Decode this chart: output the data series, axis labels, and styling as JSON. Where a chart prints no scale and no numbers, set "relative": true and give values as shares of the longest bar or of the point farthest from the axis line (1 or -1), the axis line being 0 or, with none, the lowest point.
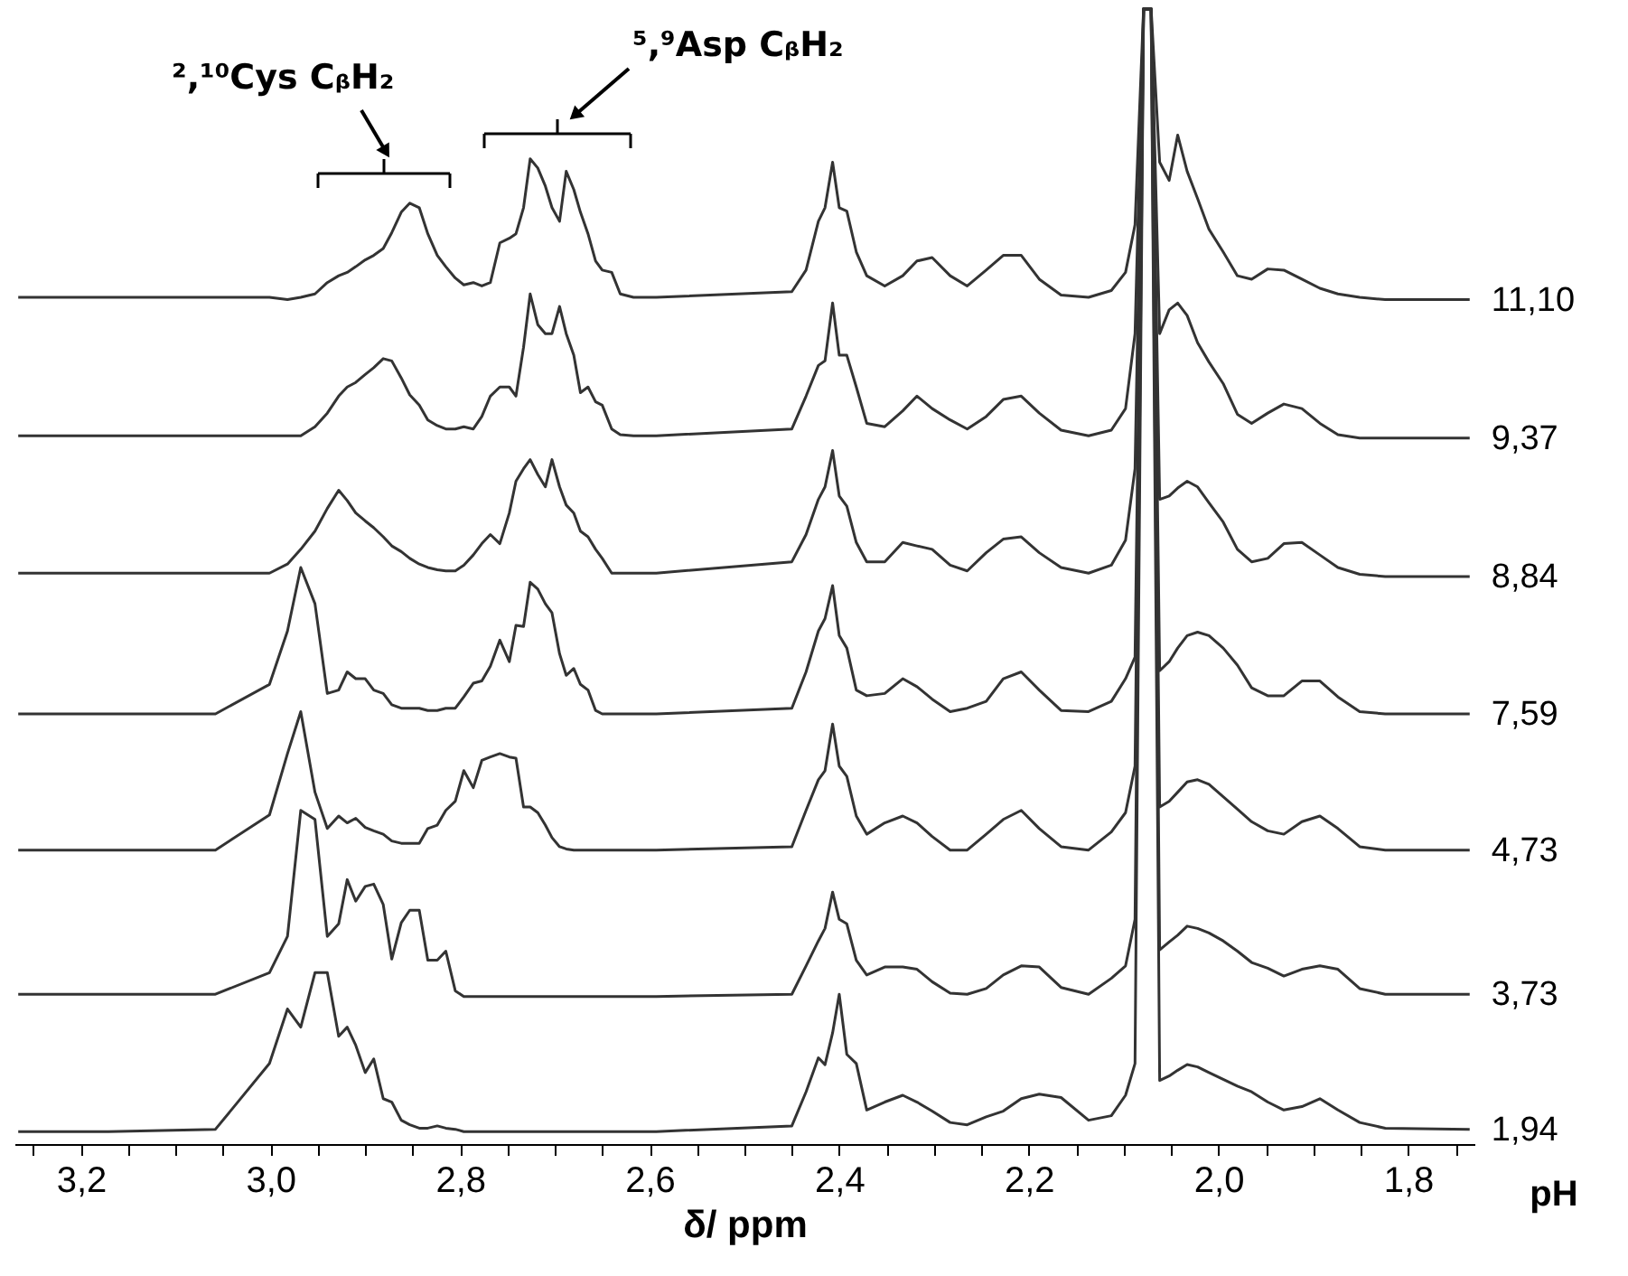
{
  "chart_data": {
    "type": "line",
    "relative": true,
    "xlabel": "δ/ ppm",
    "legend_title": "pH",
    "legend": false,
    "line_style": "solid",
    "xlim": [
      3.27,
      1.73
    ],
    "xticks": [
      {
        "value": 3.25,
        "label": null
      },
      {
        "value": 3.2,
        "label": "3,2"
      },
      {
        "value": 3.15,
        "label": null
      },
      {
        "value": 3.1,
        "label": null
      },
      {
        "value": 3.05,
        "label": null
      },
      {
        "value": 3.0,
        "label": "3,0"
      },
      {
        "value": 2.95,
        "label": null
      },
      {
        "value": 2.9,
        "label": null
      },
      {
        "value": 2.85,
        "label": null
      },
      {
        "value": 2.8,
        "label": "2,8"
      },
      {
        "value": 2.75,
        "label": null
      },
      {
        "value": 2.7,
        "label": null
      },
      {
        "value": 2.65,
        "label": null
      },
      {
        "value": 2.6,
        "label": "2,6"
      },
      {
        "value": 2.55,
        "label": null
      },
      {
        "value": 2.5,
        "label": null
      },
      {
        "value": 2.45,
        "label": null
      },
      {
        "value": 2.4,
        "label": "2,4"
      },
      {
        "value": 2.35,
        "label": null
      },
      {
        "value": 2.3,
        "label": null
      },
      {
        "value": 2.25,
        "label": null
      },
      {
        "value": 2.2,
        "label": "2,2"
      },
      {
        "value": 2.15,
        "label": null
      },
      {
        "value": 2.1,
        "label": null
      },
      {
        "value": 2.05,
        "label": null
      },
      {
        "value": 2.0,
        "label": "2,0"
      },
      {
        "value": 1.95,
        "label": null
      },
      {
        "value": 1.9,
        "label": null
      },
      {
        "value": 1.85,
        "label": null
      },
      {
        "value": 1.8,
        "label": "1,8"
      },
      {
        "value": 1.75,
        "label": null
      }
    ],
    "x": [
      3.266,
      3.171,
      3.058,
      3.001,
      2.982,
      2.968,
      2.953,
      2.94,
      2.928,
      2.919,
      2.91,
      2.9,
      2.891,
      2.881,
      2.872,
      2.862,
      2.853,
      2.843,
      2.834,
      2.824,
      2.815,
      2.805,
      2.796,
      2.786,
      2.777,
      2.768,
      2.758,
      2.748,
      2.741,
      2.733,
      2.726,
      2.718,
      2.71,
      2.703,
      2.695,
      2.688,
      2.68,
      2.673,
      2.665,
      2.657,
      2.65,
      2.64,
      2.631,
      2.617,
      2.593,
      2.45,
      2.435,
      2.422,
      2.415,
      2.407,
      2.4,
      2.392,
      2.382,
      2.371,
      2.352,
      2.333,
      2.318,
      2.302,
      2.283,
      2.265,
      2.245,
      2.227,
      2.208,
      2.189,
      2.166,
      2.137,
      2.113,
      2.098,
      2.088,
      2.079,
      2.075,
      2.071,
      2.062,
      2.052,
      2.043,
      2.033,
      2.022,
      2.01,
      1.995,
      1.98,
      1.965,
      1.948,
      1.931,
      1.912,
      1.893,
      1.874,
      1.851,
      1.824,
      1.735
    ],
    "series": [
      {
        "name": "11,10",
        "color": "#333333",
        "values": [
          0.746,
          0.746,
          0.746,
          0.746,
          0.744,
          0.746,
          0.749,
          0.759,
          0.765,
          0.768,
          0.773,
          0.779,
          0.783,
          0.789,
          0.803,
          0.821,
          0.829,
          0.825,
          0.802,
          0.783,
          0.773,
          0.763,
          0.757,
          0.759,
          0.756,
          0.759,
          0.794,
          0.798,
          0.802,
          0.825,
          0.868,
          0.86,
          0.844,
          0.825,
          0.813,
          0.857,
          0.841,
          0.821,
          0.802,
          0.778,
          0.77,
          0.768,
          0.749,
          0.746,
          0.746,
          0.751,
          0.77,
          0.813,
          0.825,
          0.865,
          0.825,
          0.822,
          0.786,
          0.765,
          0.756,
          0.765,
          0.778,
          0.781,
          0.765,
          0.756,
          0.77,
          0.783,
          0.783,
          0.762,
          0.748,
          0.746,
          0.752,
          0.768,
          0.81,
          1.0,
          1.0,
          1.0,
          0.865,
          0.849,
          0.889,
          0.857,
          0.833,
          0.806,
          0.786,
          0.765,
          0.762,
          0.771,
          0.77,
          0.762,
          0.754,
          0.749,
          0.746,
          0.744,
          0.744
        ]
      },
      {
        "name": "9,37",
        "color": "#333333",
        "values": [
          0.624,
          0.624,
          0.624,
          0.624,
          0.624,
          0.624,
          0.632,
          0.644,
          0.659,
          0.667,
          0.671,
          0.678,
          0.684,
          0.692,
          0.69,
          0.675,
          0.66,
          0.651,
          0.638,
          0.633,
          0.63,
          0.63,
          0.632,
          0.63,
          0.641,
          0.659,
          0.667,
          0.667,
          0.659,
          0.702,
          0.749,
          0.722,
          0.714,
          0.714,
          0.738,
          0.714,
          0.695,
          0.662,
          0.667,
          0.654,
          0.651,
          0.63,
          0.625,
          0.624,
          0.624,
          0.63,
          0.659,
          0.686,
          0.69,
          0.741,
          0.695,
          0.695,
          0.667,
          0.635,
          0.632,
          0.646,
          0.659,
          0.648,
          0.638,
          0.63,
          0.641,
          0.656,
          0.659,
          0.644,
          0.629,
          0.624,
          0.629,
          0.648,
          0.714,
          1.0,
          1.0,
          1.0,
          0.714,
          0.735,
          0.741,
          0.73,
          0.706,
          0.689,
          0.67,
          0.643,
          0.635,
          0.644,
          0.652,
          0.648,
          0.635,
          0.625,
          0.622,
          0.622,
          0.622
        ]
      },
      {
        "name": "8,84",
        "color": "#333333",
        "values": [
          0.503,
          0.503,
          0.503,
          0.503,
          0.511,
          0.524,
          0.54,
          0.56,
          0.576,
          0.567,
          0.556,
          0.549,
          0.543,
          0.535,
          0.527,
          0.522,
          0.516,
          0.511,
          0.508,
          0.506,
          0.505,
          0.505,
          0.51,
          0.519,
          0.529,
          0.537,
          0.529,
          0.556,
          0.584,
          0.595,
          0.603,
          0.59,
          0.579,
          0.603,
          0.579,
          0.563,
          0.556,
          0.54,
          0.535,
          0.524,
          0.516,
          0.503,
          0.503,
          0.503,
          0.503,
          0.513,
          0.537,
          0.568,
          0.579,
          0.611,
          0.571,
          0.562,
          0.53,
          0.513,
          0.513,
          0.53,
          0.527,
          0.524,
          0.51,
          0.505,
          0.521,
          0.533,
          0.535,
          0.521,
          0.508,
          0.503,
          0.51,
          0.532,
          0.595,
          1.0,
          1.0,
          1.0,
          0.568,
          0.571,
          0.578,
          0.584,
          0.579,
          0.565,
          0.548,
          0.524,
          0.513,
          0.516,
          0.529,
          0.53,
          0.519,
          0.508,
          0.502,
          0.5,
          0.5
        ]
      },
      {
        "name": "7,59",
        "color": "#333333",
        "values": [
          0.379,
          0.379,
          0.379,
          0.405,
          0.452,
          0.508,
          0.476,
          0.397,
          0.4,
          0.416,
          0.41,
          0.41,
          0.4,
          0.397,
          0.387,
          0.384,
          0.384,
          0.384,
          0.382,
          0.382,
          0.384,
          0.384,
          0.394,
          0.406,
          0.408,
          0.421,
          0.444,
          0.425,
          0.457,
          0.456,
          0.495,
          0.489,
          0.476,
          0.468,
          0.432,
          0.413,
          0.419,
          0.405,
          0.4,
          0.382,
          0.379,
          0.379,
          0.379,
          0.379,
          0.379,
          0.384,
          0.416,
          0.452,
          0.463,
          0.492,
          0.448,
          0.437,
          0.4,
          0.395,
          0.397,
          0.41,
          0.403,
          0.392,
          0.381,
          0.384,
          0.39,
          0.41,
          0.416,
          0.4,
          0.382,
          0.381,
          0.39,
          0.41,
          0.429,
          1.0,
          1.0,
          1.0,
          0.417,
          0.425,
          0.437,
          0.448,
          0.451,
          0.448,
          0.437,
          0.422,
          0.402,
          0.395,
          0.395,
          0.408,
          0.408,
          0.394,
          0.381,
          0.379,
          0.379
        ]
      },
      {
        "name": "4,73",
        "color": "#333333",
        "values": [
          0.259,
          0.259,
          0.259,
          0.29,
          0.344,
          0.381,
          0.31,
          0.278,
          0.289,
          0.283,
          0.287,
          0.279,
          0.276,
          0.273,
          0.267,
          0.265,
          0.265,
          0.265,
          0.278,
          0.281,
          0.294,
          0.302,
          0.329,
          0.314,
          0.338,
          0.341,
          0.344,
          0.341,
          0.34,
          0.297,
          0.297,
          0.292,
          0.281,
          0.27,
          0.262,
          0.26,
          0.259,
          0.259,
          0.259,
          0.259,
          0.259,
          0.259,
          0.259,
          0.259,
          0.259,
          0.262,
          0.294,
          0.321,
          0.329,
          0.37,
          0.333,
          0.324,
          0.289,
          0.273,
          0.283,
          0.289,
          0.283,
          0.271,
          0.259,
          0.259,
          0.273,
          0.286,
          0.294,
          0.278,
          0.262,
          0.259,
          0.275,
          0.292,
          0.333,
          1.0,
          1.0,
          1.0,
          0.297,
          0.302,
          0.31,
          0.319,
          0.321,
          0.317,
          0.306,
          0.295,
          0.284,
          0.276,
          0.273,
          0.284,
          0.289,
          0.278,
          0.262,
          0.259,
          0.259
        ]
      },
      {
        "name": "3,73",
        "color": "#333333",
        "values": [
          0.132,
          0.132,
          0.132,
          0.151,
          0.183,
          0.294,
          0.286,
          0.183,
          0.194,
          0.233,
          0.214,
          0.227,
          0.229,
          0.211,
          0.163,
          0.195,
          0.206,
          0.206,
          0.162,
          0.162,
          0.17,
          0.135,
          0.13,
          0.13,
          0.13,
          0.13,
          0.13,
          0.13,
          0.13,
          0.13,
          0.13,
          0.13,
          0.13,
          0.13,
          0.13,
          0.13,
          0.13,
          0.13,
          0.13,
          0.13,
          0.13,
          0.13,
          0.13,
          0.13,
          0.13,
          0.132,
          0.157,
          0.179,
          0.19,
          0.222,
          0.198,
          0.194,
          0.162,
          0.149,
          0.156,
          0.156,
          0.154,
          0.143,
          0.133,
          0.132,
          0.137,
          0.149,
          0.157,
          0.156,
          0.138,
          0.132,
          0.146,
          0.157,
          0.198,
          1.0,
          1.0,
          1.0,
          0.171,
          0.178,
          0.184,
          0.192,
          0.19,
          0.186,
          0.179,
          0.17,
          0.16,
          0.155,
          0.148,
          0.154,
          0.157,
          0.154,
          0.137,
          0.132,
          0.132
        ]
      },
      {
        "name": "1,94",
        "color": "#333333",
        "values": [
          0.011,
          0.011,
          0.013,
          0.071,
          0.119,
          0.103,
          0.151,
          0.151,
          0.095,
          0.103,
          0.087,
          0.063,
          0.075,
          0.04,
          0.037,
          0.021,
          0.017,
          0.014,
          0.014,
          0.016,
          0.014,
          0.013,
          0.011,
          0.011,
          0.011,
          0.011,
          0.011,
          0.011,
          0.011,
          0.011,
          0.011,
          0.011,
          0.011,
          0.011,
          0.011,
          0.011,
          0.011,
          0.011,
          0.011,
          0.011,
          0.011,
          0.011,
          0.011,
          0.011,
          0.011,
          0.016,
          0.046,
          0.076,
          0.07,
          0.098,
          0.132,
          0.079,
          0.071,
          0.03,
          0.037,
          0.043,
          0.037,
          0.029,
          0.019,
          0.017,
          0.024,
          0.029,
          0.04,
          0.044,
          0.041,
          0.021,
          0.025,
          0.043,
          0.071,
          1.0,
          1.0,
          1.0,
          0.056,
          0.06,
          0.065,
          0.07,
          0.068,
          0.063,
          0.057,
          0.051,
          0.046,
          0.037,
          0.03,
          0.033,
          0.04,
          0.03,
          0.019,
          0.014,
          0.013
        ]
      }
    ],
    "annotations": [
      "²,¹⁰Cys CᵦH₂",
      "⁵,⁹Asp CᵦH₂"
    ]
  }
}
